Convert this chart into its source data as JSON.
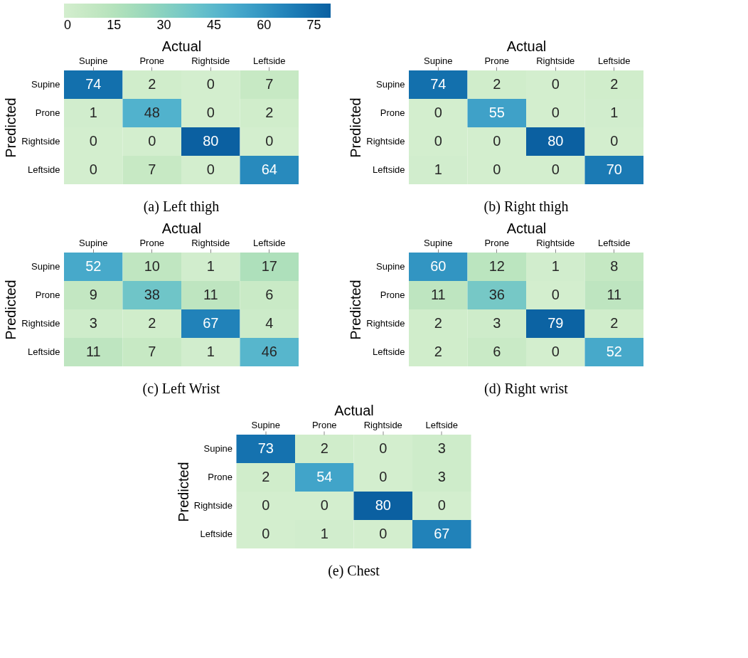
{
  "chart_data": [
    {
      "type": "heatmap",
      "title": "(a) Left thigh",
      "xlabel": "Actual",
      "ylabel": "Predicted",
      "categories": [
        "Supine",
        "Prone",
        "Rightside",
        "Leftside"
      ],
      "y_categories": [
        "Supine",
        "Prone",
        "Rightside",
        "Leftside"
      ],
      "cells": [
        [
          74,
          2,
          0,
          7
        ],
        [
          1,
          48,
          0,
          2
        ],
        [
          0,
          0,
          80,
          0
        ],
        [
          0,
          7,
          0,
          64
        ]
      ],
      "clim": [
        0,
        80
      ],
      "cticks": [
        0,
        15,
        30,
        45,
        60,
        75
      ],
      "data_labels": true
    },
    {
      "type": "heatmap",
      "title": "(b) Right thigh",
      "xlabel": "Actual",
      "ylabel": "Predicted",
      "categories": [
        "Supine",
        "Prone",
        "Rightside",
        "Leftside"
      ],
      "y_categories": [
        "Supine",
        "Prone",
        "Rightside",
        "Leftside"
      ],
      "cells": [
        [
          74,
          2,
          0,
          2
        ],
        [
          0,
          55,
          0,
          1
        ],
        [
          0,
          0,
          80,
          0
        ],
        [
          1,
          0,
          0,
          70
        ]
      ],
      "data_labels": true
    },
    {
      "type": "heatmap",
      "title": "(c) Left Wrist",
      "xlabel": "Actual",
      "ylabel": "Predicted",
      "categories": [
        "Supine",
        "Prone",
        "Rightside",
        "Leftside"
      ],
      "y_categories": [
        "Supine",
        "Prone",
        "Rightside",
        "Leftside"
      ],
      "cells": [
        [
          52,
          10,
          1,
          17
        ],
        [
          9,
          38,
          11,
          6
        ],
        [
          3,
          2,
          67,
          4
        ],
        [
          11,
          7,
          1,
          46
        ]
      ],
      "data_labels": true
    },
    {
      "type": "heatmap",
      "title": "(d) Right wrist",
      "xlabel": "Actual",
      "ylabel": "Predicted",
      "categories": [
        "Supine",
        "Prone",
        "Rightside",
        "Leftside"
      ],
      "y_categories": [
        "Supine",
        "Prone",
        "Rightside",
        "Leftside"
      ],
      "cells": [
        [
          60,
          12,
          1,
          8
        ],
        [
          11,
          36,
          0,
          11
        ],
        [
          2,
          3,
          79,
          2
        ],
        [
          2,
          6,
          0,
          52
        ]
      ],
      "data_labels": true
    },
    {
      "type": "heatmap",
      "title": "(e) Chest",
      "xlabel": "Actual",
      "ylabel": "Predicted",
      "categories": [
        "Supine",
        "Prone",
        "Rightside",
        "Leftside"
      ],
      "y_categories": [
        "Supine",
        "Prone",
        "Rightside",
        "Leftside"
      ],
      "cells": [
        [
          73,
          2,
          0,
          3
        ],
        [
          2,
          54,
          0,
          3
        ],
        [
          0,
          0,
          80,
          0
        ],
        [
          0,
          1,
          0,
          67
        ]
      ],
      "data_labels": true
    }
  ]
}
